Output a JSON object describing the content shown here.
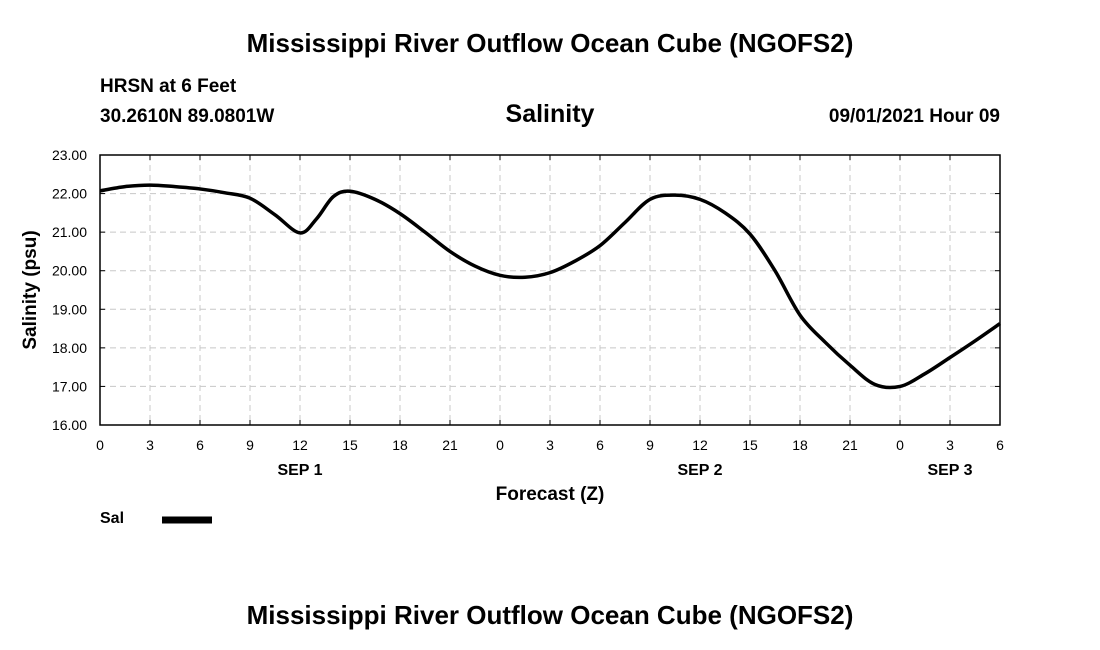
{
  "header": {
    "title_top": "Mississippi River Outflow Ocean Cube (NGOFS2)",
    "station": "HRSN at 6 Feet",
    "coords": "30.2610N  89.0801W",
    "variable": "Salinity",
    "datetime": "09/01/2021 Hour 09"
  },
  "legend": {
    "label": "Sal"
  },
  "footer": {
    "title_bottom": "Mississippi River Outflow Ocean Cube (NGOFS2)"
  },
  "chart_data": {
    "type": "line",
    "title": "Salinity",
    "xlabel": "Forecast (Z)",
    "ylabel": "Salinity (psu)",
    "xlim": [
      0,
      54
    ],
    "ylim": [
      16,
      23
    ],
    "grid": true,
    "x_ticks": [
      0,
      3,
      6,
      9,
      12,
      15,
      18,
      21,
      24,
      27,
      30,
      33,
      36,
      39,
      42,
      45,
      48,
      51,
      54
    ],
    "x_tick_labels": [
      "0",
      "3",
      "6",
      "9",
      "12",
      "15",
      "18",
      "21",
      "0",
      "3",
      "6",
      "9",
      "12",
      "15",
      "18",
      "21",
      "0",
      "3",
      "6"
    ],
    "day_labels": [
      {
        "x": 12,
        "label": "SEP 1"
      },
      {
        "x": 36,
        "label": "SEP 2"
      },
      {
        "x": 51,
        "label": "SEP 3"
      }
    ],
    "y_ticks": [
      16,
      17,
      18,
      19,
      20,
      21,
      22,
      23
    ],
    "y_tick_labels": [
      "16.00",
      "17.00",
      "18.00",
      "19.00",
      "20.00",
      "21.00",
      "22.00",
      "23.00"
    ],
    "series": [
      {
        "name": "Sal",
        "x": [
          0,
          1.5,
          3,
          4.5,
          6,
          7.5,
          9,
          10.5,
          12,
          13,
          14,
          15,
          16.5,
          18,
          19.5,
          21,
          22.5,
          24,
          25.5,
          27,
          28.5,
          30,
          31.5,
          33,
          34.5,
          36,
          37.5,
          39,
          40.5,
          42,
          43.5,
          45,
          46.5,
          48,
          49.5,
          51,
          52.5,
          54
        ],
        "values": [
          22.07,
          22.18,
          22.22,
          22.18,
          22.12,
          22.02,
          21.88,
          21.45,
          20.98,
          21.35,
          21.92,
          22.06,
          21.85,
          21.48,
          21.0,
          20.5,
          20.12,
          19.88,
          19.83,
          19.95,
          20.25,
          20.65,
          21.25,
          21.85,
          21.96,
          21.85,
          21.5,
          20.95,
          20.0,
          18.85,
          18.15,
          17.55,
          17.05,
          17.0,
          17.33,
          17.75,
          18.18,
          18.63
        ]
      }
    ]
  }
}
